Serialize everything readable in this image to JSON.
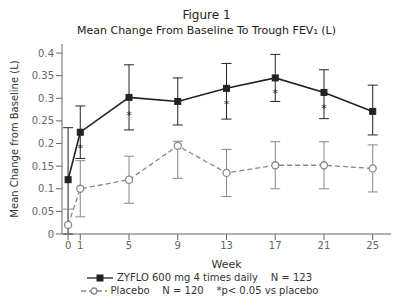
{
  "chart_data": {
    "type": "line",
    "title": "Figure 1",
    "subtitle": "Mean Change From Baseline To Trough FEV₁ (L)",
    "x_label": "Week",
    "y_label": "Mean Change from Baseline (L)",
    "xlim": [
      -0.5,
      26.5
    ],
    "xticks": [
      0,
      1,
      5,
      9,
      13,
      17,
      21,
      25
    ],
    "ylim": [
      0,
      0.42
    ],
    "yticks": [
      0,
      0.05,
      0.1,
      0.15,
      0.2,
      0.25,
      0.3,
      0.35,
      0.4
    ],
    "grid": false,
    "legend": "bottom",
    "x": [
      0,
      1,
      5,
      9,
      13,
      17,
      21,
      25
    ],
    "series": [
      {
        "name": "ZYFLO 600 mg 4 times daily    N = 123",
        "color": "#222222",
        "marker": "square",
        "line_style": "solid",
        "values": [
          0.12,
          0.225,
          0.302,
          0.293,
          0.322,
          0.345,
          0.313,
          0.271
        ],
        "error_low": [
          0.12,
          0.058,
          0.072,
          0.052,
          0.068,
          0.052,
          0.058,
          0.052
        ],
        "error_high": [
          0.115,
          0.058,
          0.072,
          0.052,
          0.055,
          0.052,
          0.05,
          0.058
        ]
      },
      {
        "name": "Placebo    N = 120    *p< 0.05 vs placebo",
        "color": "#888888",
        "marker": "circle",
        "line_style": "dashed",
        "values": [
          0.02,
          0.1,
          0.12,
          0.195,
          0.135,
          0.152,
          0.152,
          0.145
        ],
        "error_low": [
          0.02,
          0.062,
          0.052,
          0.072,
          0.052,
          0.052,
          0.052,
          0.052
        ],
        "error_high": [
          0.035,
          0.062,
          0.052,
          0.01,
          0.052,
          0.052,
          0.052,
          0.052
        ]
      }
    ],
    "annotations": [
      {
        "text": "*",
        "x": 1,
        "y": 0.2
      },
      {
        "text": "*",
        "x": 5,
        "y": 0.272
      },
      {
        "text": "*",
        "x": 13,
        "y": 0.296
      },
      {
        "text": "*",
        "x": 17,
        "y": 0.32
      },
      {
        "text": "*",
        "x": 21,
        "y": 0.287
      }
    ]
  }
}
